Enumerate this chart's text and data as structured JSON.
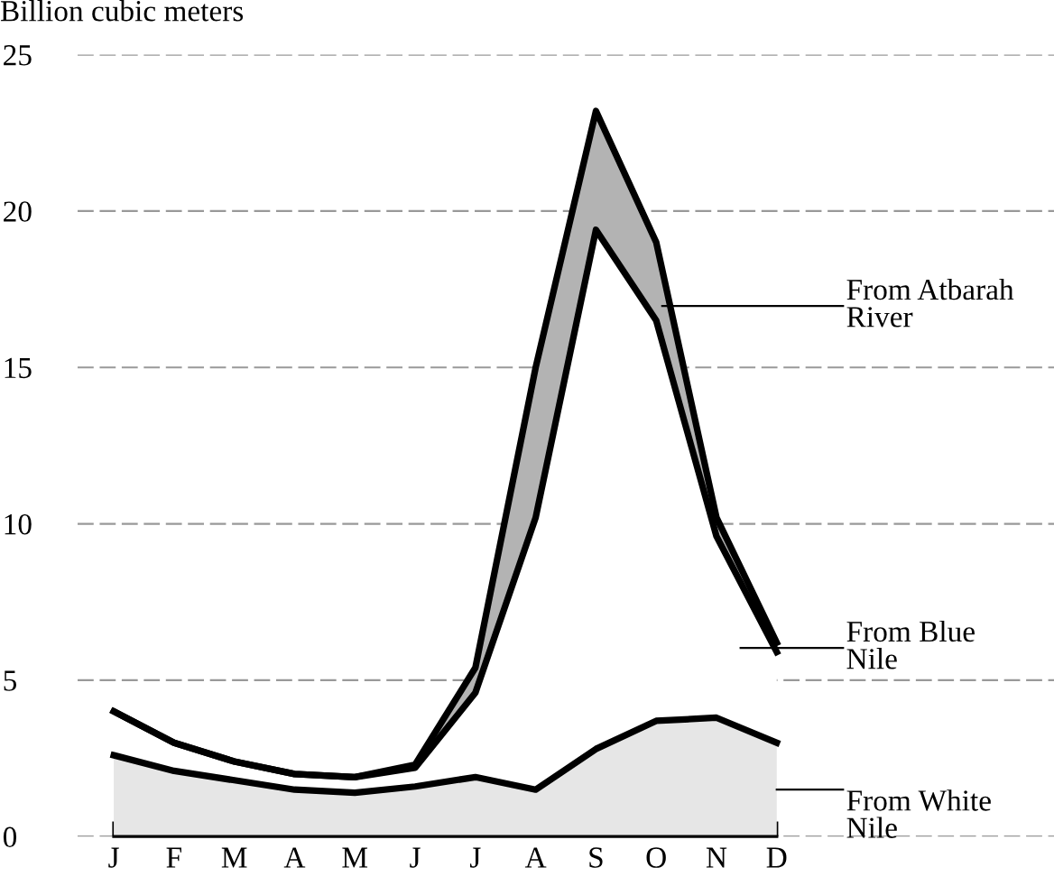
{
  "chart_data": {
    "type": "area",
    "stacked": true,
    "ylabel": "Billion cubic meters",
    "categories": [
      "J",
      "F",
      "M",
      "A",
      "M",
      "J",
      "J",
      "A",
      "S",
      "O",
      "N",
      "D"
    ],
    "series": [
      {
        "name": "From White Nile",
        "color": "#e6e6e6",
        "values": [
          2.6,
          2.1,
          1.8,
          1.5,
          1.4,
          1.6,
          1.9,
          1.5,
          2.8,
          3.7,
          3.8,
          3.0
        ]
      },
      {
        "name": "From Blue Nile",
        "color": "#ffffff",
        "values": [
          1.4,
          0.9,
          0.6,
          0.5,
          0.5,
          0.6,
          2.7,
          8.7,
          16.6,
          12.8,
          5.8,
          2.9
        ]
      },
      {
        "name": "From Atbarah River",
        "color": "#b3b3b3",
        "values": [
          0,
          0,
          0,
          0,
          0,
          0.1,
          0.8,
          4.8,
          3.8,
          2.5,
          0.6,
          0.3
        ]
      }
    ],
    "ylim": [
      0,
      25
    ],
    "yticks": [
      0,
      5,
      10,
      15,
      20,
      25
    ],
    "grid": "y",
    "legend": "right"
  }
}
